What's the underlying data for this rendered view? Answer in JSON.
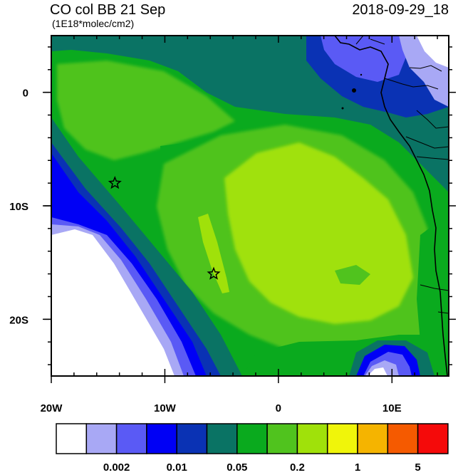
{
  "header": {
    "title": "CO col BB 21 Sep",
    "units": "(1E18*molec/cm2)",
    "datetime": "2018-09-29_18"
  },
  "map": {
    "lon_range": [
      -20,
      15
    ],
    "lat_range": [
      -25,
      5
    ],
    "x_tick_labels": [
      {
        "lon": -20,
        "text": "20W"
      },
      {
        "lon": -10,
        "text": "10W"
      },
      {
        "lon": 0,
        "text": "0"
      },
      {
        "lon": 10,
        "text": "10E"
      }
    ],
    "y_tick_labels": [
      {
        "lat": 0,
        "text": "0"
      },
      {
        "lat": -10,
        "text": "10S"
      },
      {
        "lat": -20,
        "text": "20S"
      }
    ],
    "stars": [
      {
        "lon": -14.4,
        "lat": -8.0
      },
      {
        "lon": -5.7,
        "lat": -16.0
      }
    ]
  },
  "colorbar": {
    "colors": [
      "#ffffff",
      "#a8a8f5",
      "#5a5af5",
      "#0000f5",
      "#0a32b4",
      "#0a7364",
      "#0aaa1e",
      "#50c31e",
      "#a0e10a",
      "#f0f50a",
      "#f5b400",
      "#f55a00",
      "#f50a0a"
    ],
    "labels": [
      {
        "after_box": 1,
        "text": "0.002"
      },
      {
        "after_box": 3,
        "text": "0.01"
      },
      {
        "after_box": 5,
        "text": "0.05"
      },
      {
        "after_box": 7,
        "text": "0.2"
      },
      {
        "after_box": 9,
        "text": "1"
      },
      {
        "after_box": 11,
        "text": "5"
      }
    ]
  }
}
